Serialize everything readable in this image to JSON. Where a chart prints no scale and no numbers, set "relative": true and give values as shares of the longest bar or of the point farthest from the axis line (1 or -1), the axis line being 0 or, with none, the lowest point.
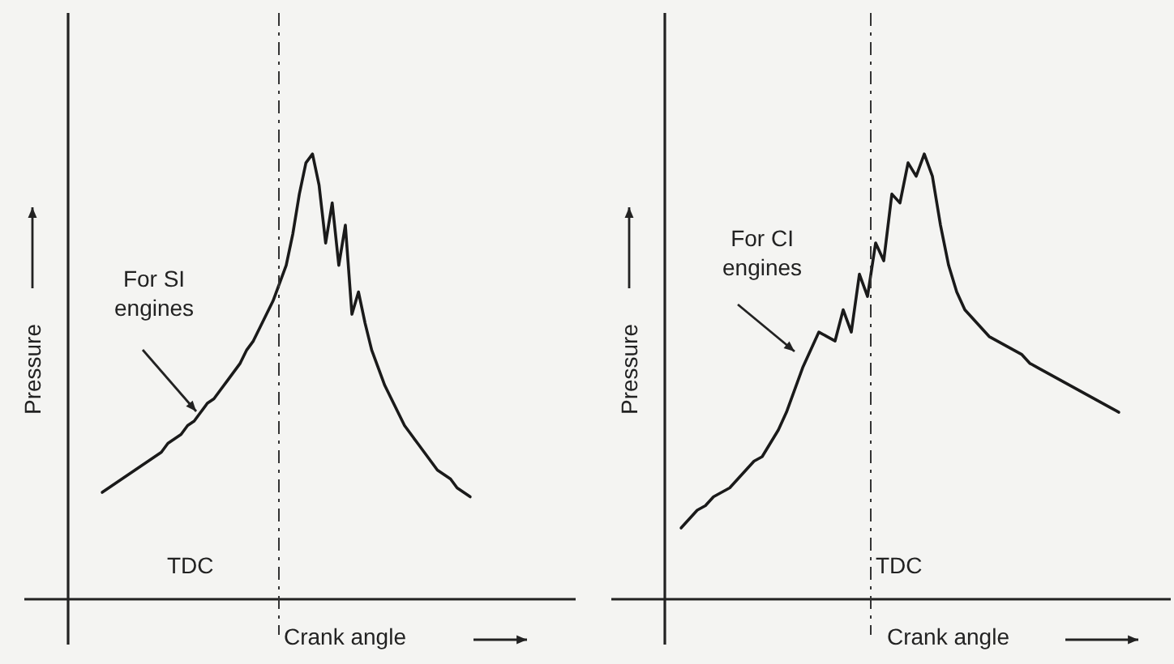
{
  "chart_data": [
    {
      "type": "line",
      "relative": true,
      "ylabel": "Pressure",
      "xlabel": "Crank angle",
      "legend": false,
      "marker": "none",
      "line_style": "solid",
      "annotations": [
        "For SI\nengines",
        "TDC"
      ],
      "categories": [
        null,
        null,
        null,
        null,
        null,
        null,
        null,
        null,
        null,
        null,
        null,
        null,
        null,
        null,
        null,
        null,
        null,
        null,
        null,
        null,
        null,
        null,
        null,
        null,
        null,
        null,
        null,
        null,
        null,
        null,
        null,
        null,
        null,
        null,
        null,
        null,
        null,
        null,
        null,
        null,
        null,
        null,
        null,
        null,
        null,
        null,
        null,
        null,
        null,
        null,
        null,
        null,
        null,
        null,
        null,
        null,
        null
      ],
      "series": [
        {
          "color": "#1a1a1a",
          "values": [
            0.24,
            0.25,
            0.26,
            0.27,
            0.28,
            0.29,
            0.3,
            0.31,
            0.32,
            0.33,
            0.35,
            0.36,
            0.37,
            0.39,
            0.4,
            0.42,
            0.44,
            0.45,
            0.47,
            0.49,
            0.51,
            0.53,
            0.56,
            0.58,
            0.61,
            0.64,
            0.67,
            0.71,
            0.75,
            0.82,
            0.91,
            0.98,
            1,
            0.93,
            0.8,
            0.89,
            0.75,
            0.84,
            0.64,
            0.69,
            0.62,
            0.56,
            0.52,
            0.48,
            0.45,
            0.42,
            0.39,
            0.37,
            0.35,
            0.33,
            0.31,
            0.29,
            0.28,
            0.27,
            0.25,
            0.24,
            0.23
          ]
        }
      ]
    },
    {
      "type": "line",
      "relative": true,
      "ylabel": "Pressure",
      "xlabel": "Crank angle",
      "legend": false,
      "marker": "none",
      "line_style": "solid",
      "annotations": [
        "For CI\nengines",
        "TDC"
      ],
      "categories": [
        null,
        null,
        null,
        null,
        null,
        null,
        null,
        null,
        null,
        null,
        null,
        null,
        null,
        null,
        null,
        null,
        null,
        null,
        null,
        null,
        null,
        null,
        null,
        null,
        null,
        null,
        null,
        null,
        null,
        null,
        null,
        null,
        null,
        null,
        null,
        null,
        null,
        null,
        null,
        null,
        null,
        null,
        null,
        null,
        null,
        null,
        null,
        null,
        null,
        null,
        null,
        null,
        null,
        null,
        null
      ],
      "series": [
        {
          "color": "#1a1a1a",
          "values": [
            0.16,
            0.18,
            0.2,
            0.21,
            0.23,
            0.24,
            0.25,
            0.27,
            0.29,
            0.31,
            0.32,
            0.35,
            0.38,
            0.42,
            0.47,
            0.52,
            0.56,
            0.6,
            0.59,
            0.58,
            0.65,
            0.6,
            0.73,
            0.68,
            0.8,
            0.76,
            0.91,
            0.89,
            0.98,
            0.95,
            1,
            0.95,
            0.84,
            0.75,
            0.69,
            0.65,
            0.63,
            0.61,
            0.59,
            0.58,
            0.57,
            0.56,
            0.55,
            0.53,
            0.52,
            0.51,
            0.5,
            0.49,
            0.48,
            0.47,
            0.46,
            0.45,
            0.44,
            0.43,
            0.42
          ]
        }
      ]
    }
  ]
}
